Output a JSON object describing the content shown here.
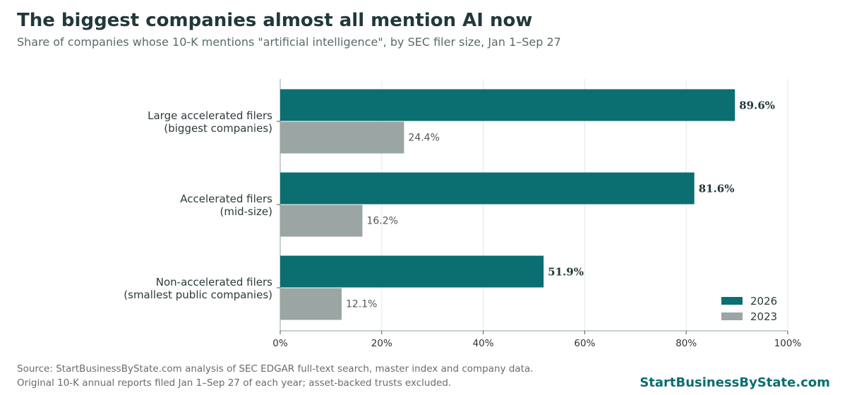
{
  "title": "The biggest companies almost all mention AI now",
  "subtitle": "Share of companies whose 10-K mentions \"artificial intelligence\", by SEC filer size, Jan 1–Sep 27",
  "footer": {
    "line1": "Source: StartBusinessByState.com analysis of SEC EDGAR full-text search, master index and company data.",
    "line2": "Original 10-K annual reports filed Jan 1–Sep 27 of each year; asset-backed trusts excluded.",
    "brand": "StartBusinessByState.com"
  },
  "colors": {
    "2026": "#0b6e70",
    "2023": "#9aa5a4"
  },
  "chart_data": {
    "type": "bar",
    "orientation": "horizontal",
    "categories": [
      [
        "Large accelerated filers",
        "(biggest companies)"
      ],
      [
        "Accelerated filers",
        "(mid-size)"
      ],
      [
        "Non-accelerated filers",
        "(smallest public companies)"
      ]
    ],
    "series": [
      {
        "name": "2026",
        "values": [
          89.6,
          81.6,
          51.9
        ],
        "labels": [
          "89.6%",
          "81.6%",
          "51.9%"
        ]
      },
      {
        "name": "2023",
        "values": [
          24.4,
          16.2,
          12.1
        ],
        "labels": [
          "24.4%",
          "16.2%",
          "12.1%"
        ]
      }
    ],
    "xlim": [
      0,
      100
    ],
    "xticks": [
      0,
      20,
      40,
      60,
      80,
      100
    ],
    "xtick_labels": [
      "0%",
      "20%",
      "40%",
      "60%",
      "80%",
      "100%"
    ],
    "grid": "vertical",
    "legend": "bottom-right"
  }
}
